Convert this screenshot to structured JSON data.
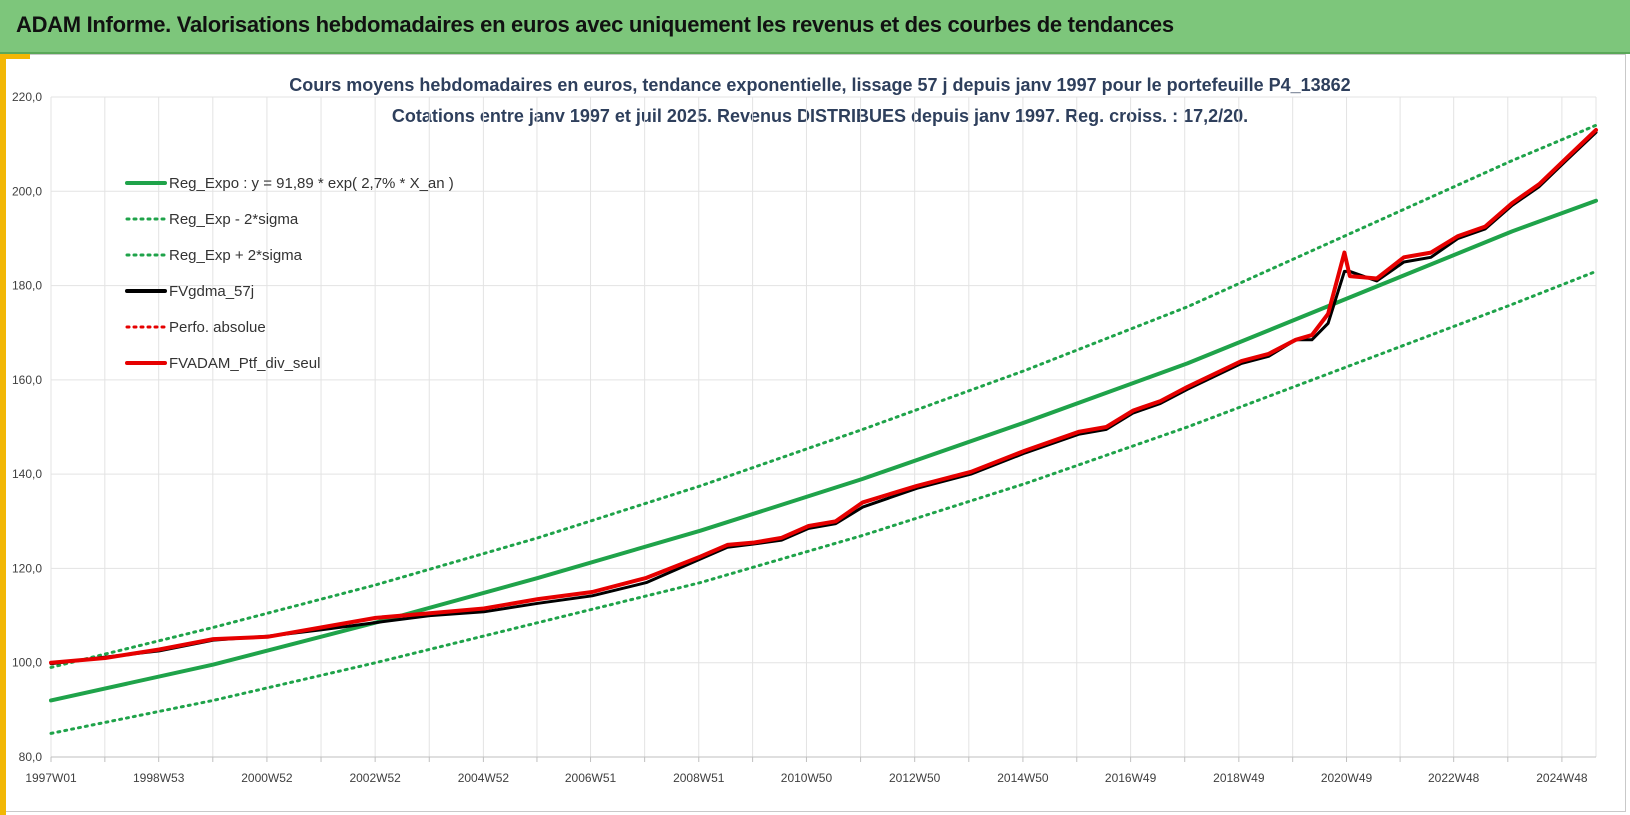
{
  "header": {
    "title": "ADAM Informe. Valorisations hebdomadaires en euros avec uniquement les revenus et des courbes de tendances"
  },
  "chart_data": {
    "type": "line",
    "title": "Cours moyens hebdomadaires  en euros, tendance exponentielle, lissage 57 j depuis janv 1997 pour le portefeuille P4_13862",
    "subtitle": "Cotations entre janv 1997 et juil 2025. Revenus DISTRIBUES depuis janv 1997. Reg. croiss. : 17,2/20.",
    "xlabel": "",
    "ylabel": "",
    "ylim": [
      80,
      220
    ],
    "yticks": [
      "80,0",
      "100,0",
      "120,0",
      "140,0",
      "160,0",
      "180,0",
      "200,0",
      "220,0"
    ],
    "ytick_values": [
      80,
      100,
      120,
      140,
      160,
      180,
      200,
      220
    ],
    "xlim": [
      1997.0,
      2025.55
    ],
    "xticks": [
      "1997W01",
      "1998W53",
      "2000W52",
      "2002W52",
      "2004W52",
      "2006W51",
      "2008W51",
      "2010W50",
      "2012W50",
      "2014W50",
      "2016W49",
      "2018W49",
      "2020W49",
      "2022W48",
      "2024W48"
    ],
    "xtick_values": [
      1997.0,
      1998.99,
      2000.99,
      2002.99,
      2004.99,
      2006.97,
      2008.97,
      2010.96,
      2012.96,
      2014.96,
      2016.95,
      2018.95,
      2020.94,
      2022.92,
      2024.92
    ],
    "grid": true,
    "legend_position": "top-left",
    "series": [
      {
        "name": "Reg_Expo : y = 91,89 * exp( 2,7% *  X_an )",
        "color": "#1fa34a",
        "style": "solid",
        "x": [
          1997.0,
          2000.0,
          2003.0,
          2006.0,
          2009.0,
          2012.0,
          2015.0,
          2018.0,
          2021.0,
          2024.0,
          2025.55
        ],
        "values": [
          92.0,
          99.6,
          108.5,
          118.0,
          128.0,
          139.0,
          151.0,
          163.5,
          177.5,
          191.5,
          198.0
        ]
      },
      {
        "name": "Reg_Exp - 2*sigma",
        "color": "#1fa34a",
        "style": "dotted",
        "x": [
          1997.0,
          2000.0,
          2003.0,
          2006.0,
          2009.0,
          2012.0,
          2015.0,
          2018.0,
          2021.0,
          2024.0,
          2025.55
        ],
        "values": [
          85.0,
          92.0,
          100.0,
          108.5,
          117.0,
          127.0,
          138.0,
          150.0,
          163.0,
          176.0,
          183.0
        ]
      },
      {
        "name": "Reg_Exp + 2*sigma",
        "color": "#1fa34a",
        "style": "dotted",
        "x": [
          1997.0,
          2000.0,
          2003.0,
          2006.0,
          2009.0,
          2012.0,
          2015.0,
          2018.0,
          2021.0,
          2024.0,
          2025.55
        ],
        "values": [
          99.0,
          107.5,
          116.5,
          126.5,
          137.5,
          149.5,
          162.0,
          175.5,
          191.0,
          206.5,
          214.0
        ]
      },
      {
        "name": "FVgdma_57j",
        "color": "#000000",
        "style": "solid",
        "x": [
          1997.0,
          1998.0,
          1999.0,
          2000.0,
          2001.0,
          2002.0,
          2003.0,
          2004.0,
          2005.0,
          2006.0,
          2007.0,
          2008.0,
          2009.0,
          2009.5,
          2010.0,
          2010.5,
          2011.0,
          2011.5,
          2012.0,
          2013.0,
          2014.0,
          2015.0,
          2016.0,
          2016.5,
          2017.0,
          2017.5,
          2018.0,
          2019.0,
          2019.5,
          2020.0,
          2020.3,
          2020.6,
          2020.9,
          2021.0,
          2021.5,
          2022.0,
          2022.5,
          2023.0,
          2023.5,
          2024.0,
          2024.5,
          2025.0,
          2025.55
        ],
        "values": [
          99.8,
          101.2,
          102.5,
          104.8,
          105.6,
          107.0,
          108.5,
          110.0,
          110.8,
          112.6,
          114.2,
          117.0,
          122.0,
          124.5,
          125.2,
          126.0,
          128.5,
          129.5,
          133.0,
          137.0,
          140.0,
          144.5,
          148.5,
          149.5,
          153.0,
          155.0,
          158.0,
          163.5,
          165.0,
          168.5,
          168.5,
          172.0,
          183.0,
          183.0,
          181.0,
          185.0,
          186.0,
          190.0,
          192.0,
          197.0,
          201.0,
          206.5,
          212.5
        ]
      },
      {
        "name": "Perfo. absolue",
        "color": "#e60000",
        "style": "dotted",
        "x": [],
        "values": []
      },
      {
        "name": "FVADAM_Ptf_div_seul",
        "color": "#e60000",
        "style": "solid",
        "x": [
          1997.0,
          1998.0,
          1999.0,
          2000.0,
          2001.0,
          2002.0,
          2003.0,
          2004.0,
          2005.0,
          2006.0,
          2007.0,
          2008.0,
          2009.0,
          2009.5,
          2010.0,
          2010.5,
          2011.0,
          2011.5,
          2012.0,
          2013.0,
          2014.0,
          2015.0,
          2016.0,
          2016.5,
          2017.0,
          2017.5,
          2018.0,
          2019.0,
          2019.5,
          2020.0,
          2020.3,
          2020.6,
          2020.9,
          2021.0,
          2021.5,
          2022.0,
          2022.5,
          2023.0,
          2023.5,
          2024.0,
          2024.5,
          2025.0,
          2025.55
        ],
        "values": [
          100.0,
          101.0,
          102.8,
          105.0,
          105.5,
          107.5,
          109.5,
          110.5,
          111.5,
          113.5,
          115.0,
          118.0,
          122.5,
          125.0,
          125.5,
          126.5,
          129.0,
          130.0,
          134.0,
          137.5,
          140.5,
          145.0,
          149.0,
          150.0,
          153.5,
          155.5,
          158.5,
          164.0,
          165.5,
          168.5,
          169.5,
          174.0,
          187.0,
          182.0,
          181.5,
          186.0,
          187.0,
          190.5,
          192.5,
          197.5,
          201.5,
          207.0,
          213.0
        ]
      }
    ]
  }
}
